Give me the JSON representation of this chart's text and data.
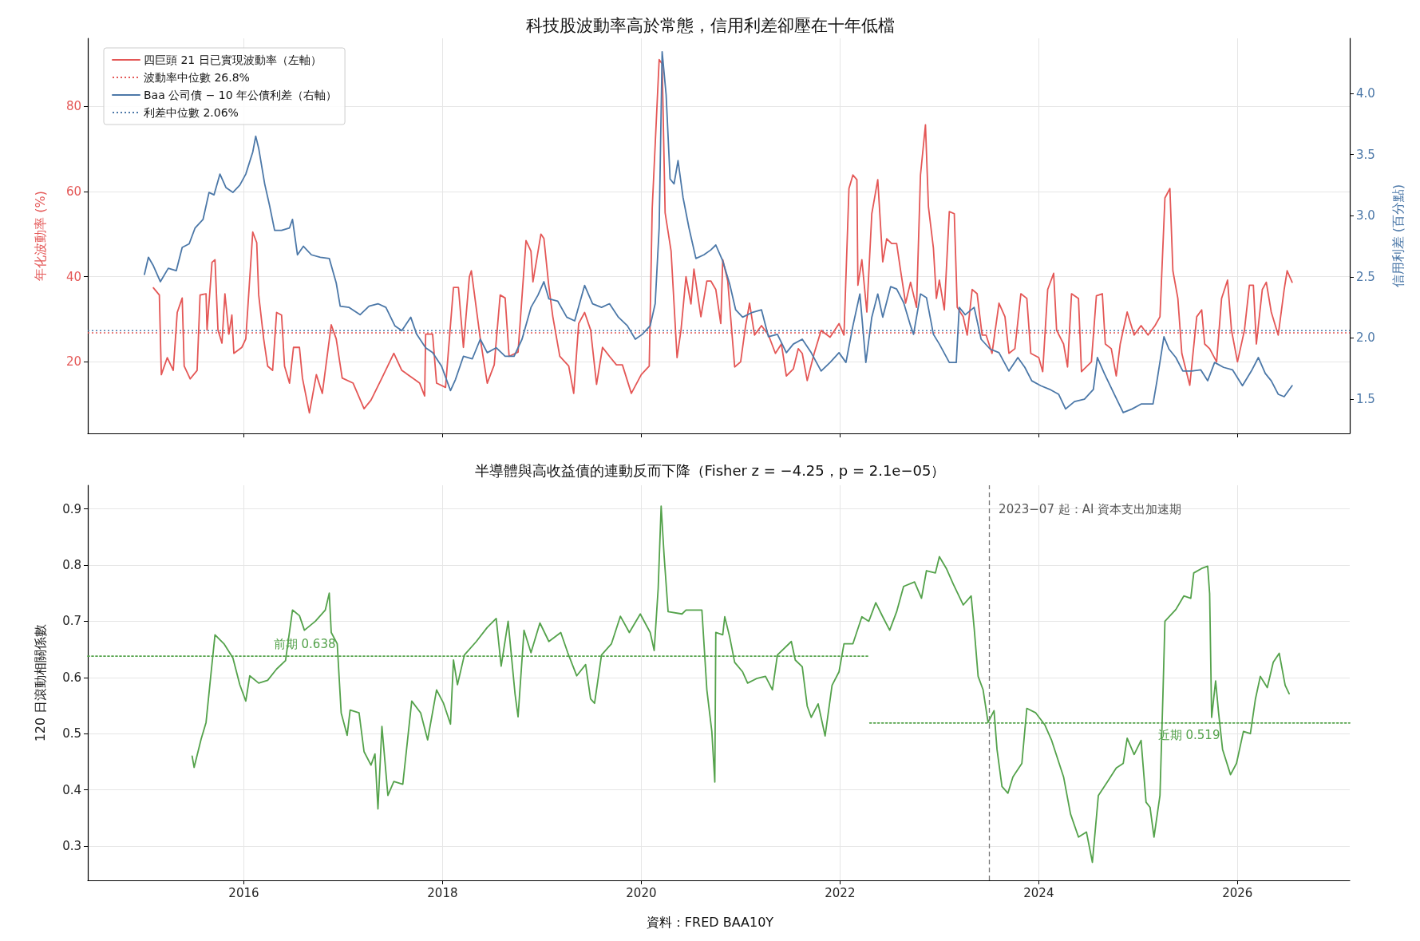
{
  "chart_data": [
    {
      "type": "line",
      "title": "科技股波動率高於常態，信用利差卻壓在十年低檔",
      "ylabel": "年化波動率 (%)",
      "y2label": "信用利差 (百分點)",
      "xlim": [
        2014.43,
        2027.13
      ],
      "xticks": [
        2016,
        2018,
        2020,
        2022,
        2024,
        2026
      ],
      "ylim": [
        3.2,
        96
      ],
      "yticks": [
        20,
        40,
        60,
        80
      ],
      "y2lim": [
        1.22,
        4.45
      ],
      "y2ticks": [
        1.5,
        {
          "value": 2,
          "label": "2.0"
        },
        2.5,
        {
          "value": 3,
          "label": "3.0"
        },
        3.5,
        {
          "value": 4,
          "label": "4.0"
        }
      ],
      "tick_labels": "y",
      "grid": true,
      "legend": "top left",
      "line_style": "solid",
      "marker": "none",
      "series": [
        {
          "name": "四巨頭 21 日已實現波動率（左軸）",
          "color": "#e45756",
          "x": [
            2015.09,
            2015.15,
            2015.17,
            2015.23,
            2015.29,
            2015.33,
            2015.38,
            2015.4,
            2015.46,
            2015.53,
            2015.56,
            2015.62,
            2015.63,
            2015.68,
            2015.71,
            2015.74,
            2015.78,
            2015.81,
            2015.85,
            2015.88,
            2015.9,
            2015.98,
            2016.02,
            2016.09,
            2016.13,
            2016.15,
            2016.2,
            2016.24,
            2016.29,
            2016.33,
            2016.38,
            2016.41,
            2016.46,
            2016.5,
            2016.56,
            2016.59,
            2016.66,
            2016.73,
            2016.79,
            2016.88,
            2016.93,
            2016.99,
            2017.1,
            2017.21,
            2017.28,
            2017.39,
            2017.51,
            2017.59,
            2017.7,
            2017.77,
            2017.82,
            2017.83,
            2017.9,
            2017.94,
            2018.03,
            2018.11,
            2018.16,
            2018.21,
            2018.27,
            2018.29,
            2018.38,
            2018.45,
            2018.52,
            2018.58,
            2018.63,
            2018.67,
            2018.76,
            2018.84,
            2018.89,
            2018.91,
            2018.99,
            2019.02,
            2019.07,
            2019.11,
            2019.18,
            2019.27,
            2019.32,
            2019.37,
            2019.43,
            2019.49,
            2019.55,
            2019.61,
            2019.68,
            2019.75,
            2019.81,
            2019.9,
            2020,
            2020.08,
            2020.11,
            2020.18,
            2020.21,
            2020.24,
            2020.3,
            2020.36,
            2020.4,
            2020.45,
            2020.5,
            2020.53,
            2020.6,
            2020.66,
            2020.7,
            2020.75,
            2020.8,
            2020.82,
            2020.87,
            2020.94,
            2021,
            2021.05,
            2021.09,
            2021.14,
            2021.21,
            2021.28,
            2021.35,
            2021.41,
            2021.46,
            2021.53,
            2021.58,
            2021.62,
            2021.67,
            2021.74,
            2021.81,
            2021.9,
            2021.99,
            2022.04,
            2022.09,
            2022.13,
            2022.17,
            2022.18,
            2022.22,
            2022.27,
            2022.32,
            2022.38,
            2022.43,
            2022.47,
            2022.52,
            2022.57,
            2022.61,
            2022.66,
            2022.71,
            2022.77,
            2022.81,
            2022.86,
            2022.89,
            2022.94,
            2022.97,
            2023,
            2023.05,
            2023.1,
            2023.15,
            2023.18,
            2023.24,
            2023.28,
            2023.33,
            2023.38,
            2023.43,
            2023.47,
            2023.53,
            2023.6,
            2023.66,
            2023.7,
            2023.76,
            2023.82,
            2023.88,
            2023.92,
            2024,
            2024.04,
            2024.09,
            2024.15,
            2024.18,
            2024.25,
            2024.29,
            2024.33,
            2024.4,
            2024.43,
            2024.53,
            2024.58,
            2024.64,
            2024.67,
            2024.73,
            2024.78,
            2024.82,
            2024.89,
            2024.96,
            2025.03,
            2025.1,
            2025.17,
            2025.22,
            2025.27,
            2025.32,
            2025.35,
            2025.4,
            2025.44,
            2025.52,
            2025.59,
            2025.64,
            2025.67,
            2025.72,
            2025.79,
            2025.84,
            2025.9,
            2025.94,
            2026,
            2026.07,
            2026.12,
            2026.16,
            2026.19,
            2026.25,
            2026.29,
            2026.34,
            2026.41,
            2026.47,
            2026.5,
            2026.55
          ],
          "values": [
            37.4,
            35.7,
            17,
            21,
            18,
            31.6,
            35,
            19,
            16,
            18,
            35.7,
            36,
            27.5,
            43.4,
            44,
            27.5,
            24.4,
            36,
            26.5,
            31,
            22,
            23.4,
            25.4,
            50.5,
            48,
            35.7,
            25.4,
            19,
            18,
            31.6,
            31,
            19,
            15,
            23.4,
            23.4,
            16.2,
            8,
            17,
            12.6,
            28.7,
            25.4,
            16.2,
            15,
            9,
            11,
            16.2,
            22,
            18,
            16.2,
            15,
            12,
            26.5,
            26.5,
            15,
            14,
            37.5,
            37.5,
            23.4,
            40,
            41.4,
            25.4,
            15,
            19.3,
            35.7,
            35,
            21.3,
            22.3,
            48.5,
            46,
            38.8,
            50,
            49,
            37.7,
            30.6,
            21.3,
            19,
            12.6,
            29,
            31.6,
            27.5,
            14.7,
            23.4,
            21.3,
            19.3,
            19.3,
            12.6,
            17,
            19,
            56,
            91,
            90,
            55,
            46,
            21,
            27.5,
            40,
            33.6,
            41.8,
            30.6,
            39,
            39,
            37,
            29,
            44,
            39,
            18.8,
            20,
            28.5,
            33.8,
            26.3,
            28.5,
            26.3,
            22,
            24.2,
            16.7,
            18.3,
            23.1,
            22,
            15.6,
            22,
            27.4,
            25.8,
            29,
            26.3,
            60.7,
            63.9,
            62.8,
            38,
            44,
            31.7,
            54.8,
            62.8,
            43.5,
            48.9,
            47.8,
            47.8,
            41.4,
            33.8,
            38.7,
            32.8,
            63.9,
            75.7,
            56.4,
            46.7,
            34.9,
            39.2,
            32.2,
            55.3,
            54.8,
            32.8,
            30.6,
            26.3,
            37,
            36,
            26.3,
            26.3,
            22,
            33.8,
            30.6,
            22,
            23.1,
            36,
            34.9,
            22,
            21,
            17.7,
            37,
            40.8,
            27.4,
            24.2,
            18.8,
            36,
            34.9,
            17.7,
            20,
            35.5,
            36,
            24.2,
            23.1,
            16.7,
            24.2,
            31.7,
            26.3,
            28.5,
            26.3,
            28.5,
            30.6,
            58.5,
            60.7,
            41.4,
            34.9,
            22,
            14.5,
            30.6,
            32.2,
            24.2,
            23.1,
            20,
            34.9,
            39.2,
            27.4,
            20,
            27.4,
            38,
            38,
            24.2,
            37,
            38.7,
            31.7,
            26.3,
            37,
            41.4,
            38.7
          ]
        },
        {
          "name": "Baa 公司債 − 10 年公債利差（右軸）",
          "color": "#4c78a8",
          "axis": "y2",
          "x": [
            2015,
            2015.04,
            2015.09,
            2015.16,
            2015.24,
            2015.32,
            2015.38,
            2015.45,
            2015.51,
            2015.59,
            2015.65,
            2015.7,
            2015.76,
            2015.82,
            2015.89,
            2015.96,
            2016.02,
            2016.09,
            2016.12,
            2016.15,
            2016.21,
            2016.26,
            2016.31,
            2016.38,
            2016.46,
            2016.49,
            2016.54,
            2016.6,
            2016.68,
            2016.77,
            2016.86,
            2016.93,
            2016.97,
            2017.06,
            2017.17,
            2017.26,
            2017.35,
            2017.43,
            2017.52,
            2017.59,
            2017.68,
            2017.74,
            2017.83,
            2017.9,
            2017.99,
            2018.08,
            2018.13,
            2018.21,
            2018.3,
            2018.38,
            2018.45,
            2018.54,
            2018.63,
            2018.72,
            2018.8,
            2018.89,
            2018.96,
            2019.02,
            2019.07,
            2019.16,
            2019.25,
            2019.33,
            2019.43,
            2019.51,
            2019.6,
            2019.68,
            2019.77,
            2019.86,
            2019.94,
            2020.01,
            2020.09,
            2020.14,
            2020.18,
            2020.21,
            2020.25,
            2020.29,
            2020.33,
            2020.37,
            2020.42,
            2020.48,
            2020.55,
            2020.63,
            2020.7,
            2020.75,
            2020.82,
            2020.89,
            2020.95,
            2021.02,
            2021.12,
            2021.21,
            2021.28,
            2021.37,
            2021.46,
            2021.53,
            2021.62,
            2021.71,
            2021.81,
            2021.9,
            2021.99,
            2022.06,
            2022.13,
            2022.2,
            2022.26,
            2022.32,
            2022.38,
            2022.43,
            2022.51,
            2022.57,
            2022.64,
            2022.71,
            2022.74,
            2022.81,
            2022.87,
            2022.94,
            2023,
            2023.1,
            2023.17,
            2023.2,
            2023.26,
            2023.35,
            2023.42,
            2023.51,
            2023.6,
            2023.7,
            2023.79,
            2023.86,
            2023.93,
            2024.02,
            2024.11,
            2024.2,
            2024.27,
            2024.36,
            2024.46,
            2024.55,
            2024.59,
            2024.66,
            2024.76,
            2024.85,
            2024.94,
            2025.03,
            2025.15,
            2025.19,
            2025.26,
            2025.31,
            2025.38,
            2025.45,
            2025.54,
            2025.63,
            2025.7,
            2025.77,
            2025.86,
            2025.95,
            2026.05,
            2026.14,
            2026.21,
            2026.28,
            2026.34,
            2026.41,
            2026.47,
            2026.55
          ],
          "values": [
            2.52,
            2.66,
            2.59,
            2.46,
            2.57,
            2.55,
            2.74,
            2.77,
            2.9,
            2.97,
            3.19,
            3.17,
            3.34,
            3.23,
            3.19,
            3.25,
            3.34,
            3.52,
            3.65,
            3.55,
            3.26,
            3.08,
            2.88,
            2.88,
            2.9,
            2.97,
            2.68,
            2.75,
            2.68,
            2.66,
            2.65,
            2.45,
            2.26,
            2.25,
            2.19,
            2.26,
            2.28,
            2.25,
            2.1,
            2.06,
            2.17,
            2.03,
            1.92,
            1.88,
            1.77,
            1.57,
            1.66,
            1.85,
            1.83,
            1.99,
            1.88,
            1.92,
            1.85,
            1.85,
            1.99,
            2.25,
            2.35,
            2.46,
            2.32,
            2.3,
            2.17,
            2.14,
            2.43,
            2.28,
            2.25,
            2.28,
            2.17,
            2.1,
            1.99,
            2.03,
            2.1,
            2.28,
            2.9,
            4.34,
            3.99,
            3.3,
            3.26,
            3.45,
            3.15,
            2.9,
            2.65,
            2.68,
            2.72,
            2.76,
            2.63,
            2.44,
            2.23,
            2.17,
            2.21,
            2.23,
            2.01,
            2.03,
            1.88,
            1.95,
            1.99,
            1.88,
            1.73,
            1.8,
            1.88,
            1.8,
            2.1,
            2.36,
            1.8,
            2.17,
            2.36,
            2.17,
            2.42,
            2.4,
            2.29,
            2.1,
            2.03,
            2.36,
            2.33,
            2.03,
            1.95,
            1.8,
            1.8,
            2.25,
            2.19,
            2.25,
            1.99,
            1.91,
            1.88,
            1.73,
            1.84,
            1.76,
            1.65,
            1.61,
            1.58,
            1.54,
            1.42,
            1.48,
            1.5,
            1.58,
            1.84,
            1.71,
            1.54,
            1.39,
            1.42,
            1.46,
            1.46,
            1.65,
            2.01,
            1.91,
            1.84,
            1.73,
            1.73,
            1.74,
            1.65,
            1.8,
            1.76,
            1.74,
            1.61,
            1.73,
            1.84,
            1.71,
            1.65,
            1.54,
            1.52,
            1.61
          ]
        }
      ],
      "ref_lines": [
        {
          "axis": "y",
          "value": 26.8,
          "label": "波動率中位數 26.8%",
          "color": "#e45756",
          "line_style": "dotted"
        },
        {
          "axis": "y2",
          "value": 2.06,
          "label": "利差中位數 2.06%",
          "color": "#4c78a8",
          "line_style": "dotted"
        }
      ]
    },
    {
      "type": "line",
      "title": "半導體與高收益債的連動反而下降（Fisher z = −4.25，p = 2.1e−05）",
      "ylabel": "120 日滾動相關係數",
      "xlim": [
        2014.43,
        2027.13
      ],
      "xticks": [
        2016,
        2018,
        2020,
        2022,
        2024,
        2026
      ],
      "ylim": [
        0.239,
        0.942
      ],
      "yticks": [
        {
          "value": 0.3,
          "label": "0.3"
        },
        0.4,
        0.5,
        0.6,
        0.7,
        0.8,
        0.9
      ],
      "grid": true,
      "line_style": "solid",
      "marker": "none",
      "series": [
        {
          "color": "#54a24b",
          "x": [
            2015.48,
            2015.5,
            2015.57,
            2015.62,
            2015.66,
            2015.71,
            2015.8,
            2015.89,
            2015.96,
            2016.02,
            2016.06,
            2016.15,
            2016.24,
            2016.33,
            2016.42,
            2016.49,
            2016.56,
            2016.61,
            2016.72,
            2016.82,
            2016.86,
            2016.88,
            2016.94,
            2016.98,
            2017.04,
            2017.07,
            2017.16,
            2017.21,
            2017.28,
            2017.32,
            2017.35,
            2017.39,
            2017.45,
            2017.51,
            2017.6,
            2017.69,
            2017.78,
            2017.85,
            2017.94,
            2018.01,
            2018.08,
            2018.11,
            2018.15,
            2018.22,
            2018.34,
            2018.45,
            2018.54,
            2018.59,
            2018.66,
            2018.73,
            2018.76,
            2018.82,
            2018.89,
            2018.98,
            2019.07,
            2019.19,
            2019.26,
            2019.35,
            2019.44,
            2019.49,
            2019.53,
            2019.6,
            2019.7,
            2019.79,
            2019.88,
            2019.99,
            2020.09,
            2020.13,
            2020.17,
            2020.2,
            2020.23,
            2020.27,
            2020.41,
            2020.45,
            2020.61,
            2020.66,
            2020.71,
            2020.74,
            2020.75,
            2020.82,
            2020.84,
            2020.89,
            2020.94,
            2021.02,
            2021.07,
            2021.16,
            2021.25,
            2021.32,
            2021.37,
            2021.51,
            2021.55,
            2021.62,
            2021.67,
            2021.71,
            2021.78,
            2021.85,
            2021.92,
            2021.99,
            2022.04,
            2022.13,
            2022.22,
            2022.29,
            2022.36,
            2022.43,
            2022.5,
            2022.57,
            2022.64,
            2022.75,
            2022.82,
            2022.87,
            2022.96,
            2023,
            2023.07,
            2023.14,
            2023.24,
            2023.32,
            2023.35,
            2023.39,
            2023.44,
            2023.49,
            2023.55,
            2023.58,
            2023.63,
            2023.69,
            2023.74,
            2023.83,
            2023.88,
            2023.97,
            2024.06,
            2024.13,
            2024.25,
            2024.32,
            2024.4,
            2024.48,
            2024.54,
            2024.6,
            2024.69,
            2024.78,
            2024.85,
            2024.89,
            2024.96,
            2025.03,
            2025.08,
            2025.12,
            2025.16,
            2025.22,
            2025.25,
            2025.27,
            2025.38,
            2025.46,
            2025.53,
            2025.56,
            2025.64,
            2025.7,
            2025.72,
            2025.74,
            2025.78,
            2025.81,
            2025.85,
            2025.93,
            2025.99,
            2026.06,
            2026.13,
            2026.18,
            2026.23,
            2026.3,
            2026.36,
            2026.42,
            2026.48,
            2026.52
          ],
          "values": [
            0.46,
            0.44,
            0.49,
            0.52,
            0.59,
            0.676,
            0.66,
            0.635,
            0.587,
            0.558,
            0.603,
            0.59,
            0.595,
            0.615,
            0.63,
            0.72,
            0.71,
            0.684,
            0.7,
            0.72,
            0.75,
            0.68,
            0.66,
            0.537,
            0.497,
            0.542,
            0.537,
            0.468,
            0.444,
            0.464,
            0.366,
            0.513,
            0.39,
            0.415,
            0.41,
            0.558,
            0.537,
            0.489,
            0.578,
            0.554,
            0.517,
            0.631,
            0.587,
            0.64,
            0.664,
            0.689,
            0.705,
            0.62,
            0.7,
            0.57,
            0.53,
            0.684,
            0.644,
            0.697,
            0.664,
            0.68,
            0.644,
            0.603,
            0.623,
            0.562,
            0.554,
            0.64,
            0.66,
            0.709,
            0.68,
            0.713,
            0.68,
            0.648,
            0.758,
            0.905,
            0.816,
            0.717,
            0.713,
            0.72,
            0.72,
            0.578,
            0.504,
            0.414,
            0.68,
            0.676,
            0.708,
            0.672,
            0.627,
            0.61,
            0.59,
            0.598,
            0.602,
            0.578,
            0.64,
            0.664,
            0.631,
            0.619,
            0.549,
            0.529,
            0.553,
            0.496,
            0.586,
            0.61,
            0.66,
            0.66,
            0.708,
            0.7,
            0.733,
            0.708,
            0.684,
            0.717,
            0.762,
            0.77,
            0.741,
            0.79,
            0.786,
            0.815,
            0.794,
            0.766,
            0.729,
            0.745,
            0.688,
            0.602,
            0.578,
            0.52,
            0.541,
            0.472,
            0.406,
            0.394,
            0.423,
            0.447,
            0.545,
            0.537,
            0.516,
            0.488,
            0.423,
            0.357,
            0.316,
            0.325,
            0.271,
            0.39,
            0.414,
            0.439,
            0.447,
            0.492,
            0.463,
            0.488,
            0.378,
            0.369,
            0.316,
            0.39,
            0.57,
            0.7,
            0.721,
            0.745,
            0.741,
            0.786,
            0.794,
            0.798,
            0.749,
            0.529,
            0.594,
            0.537,
            0.472,
            0.427,
            0.447,
            0.504,
            0.5,
            0.561,
            0.602,
            0.582,
            0.627,
            0.643,
            0.586,
            0.571
          ]
        },
        {
          "color": "#54a24b",
          "line_style": "dotted",
          "x": [
            2014.43,
            2022.3
          ],
          "values": [
            0.638,
            0.638
          ]
        },
        {
          "color": "#54a24b",
          "line_style": "dotted",
          "x": [
            2022.3,
            2027.13
          ],
          "values": [
            0.519,
            0.519
          ]
        }
      ],
      "ref_lines": [
        {
          "axis": "x",
          "value": 2023.5,
          "label": "2023−07 起：AI 資本支出加速期",
          "color": "#777777",
          "line_style": "dashed"
        }
      ],
      "annotations": [
        {
          "text": "前期 0.638",
          "x": 2016.3,
          "y": 0.638
        },
        {
          "text": "近期 0.519",
          "x": 2025.2,
          "y": 0.519
        },
        "資料：FRED BAA10Y"
      ]
    }
  ]
}
